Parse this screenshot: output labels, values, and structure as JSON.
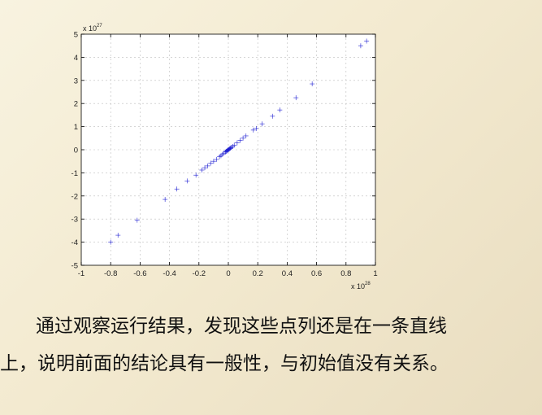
{
  "chart_data": {
    "type": "scatter",
    "title": "",
    "xlabel": "",
    "ylabel": "",
    "x_multiplier": "x 10",
    "x_exponent": "28",
    "y_multiplier": "x 10",
    "y_exponent": "27",
    "xlim": [
      -1,
      1
    ],
    "ylim": [
      -5,
      5
    ],
    "xticks": [
      "-1",
      "-0.8",
      "-0.6",
      "-0.4",
      "-0.2",
      "0",
      "0.2",
      "0.4",
      "0.6",
      "0.8",
      "1"
    ],
    "yticks": [
      "5",
      "4",
      "3",
      "2",
      "1",
      "0",
      "-1",
      "-2",
      "-3",
      "-4",
      "-5"
    ],
    "grid": true,
    "marker": "+",
    "color": "#0000cc",
    "points": [
      [
        -0.8,
        -4.0
      ],
      [
        -0.75,
        -3.7
      ],
      [
        -0.62,
        -3.05
      ],
      [
        -0.43,
        -2.15
      ],
      [
        -0.35,
        -1.7
      ],
      [
        -0.28,
        -1.35
      ],
      [
        -0.22,
        -1.1
      ],
      [
        -0.18,
        -0.88
      ],
      [
        -0.16,
        -0.78
      ],
      [
        -0.14,
        -0.7
      ],
      [
        -0.12,
        -0.58
      ],
      [
        -0.1,
        -0.5
      ],
      [
        -0.08,
        -0.42
      ],
      [
        -0.06,
        -0.3
      ],
      [
        -0.05,
        -0.26
      ],
      [
        -0.04,
        -0.2
      ],
      [
        -0.03,
        -0.15
      ],
      [
        -0.02,
        -0.1
      ],
      [
        -0.015,
        -0.07
      ],
      [
        -0.01,
        -0.05
      ],
      [
        -0.005,
        -0.02
      ],
      [
        0.0,
        0.0
      ],
      [
        0.005,
        0.02
      ],
      [
        0.01,
        0.05
      ],
      [
        0.015,
        0.07
      ],
      [
        0.02,
        0.1
      ],
      [
        0.03,
        0.14
      ],
      [
        0.04,
        0.2
      ],
      [
        0.06,
        0.3
      ],
      [
        0.08,
        0.4
      ],
      [
        0.1,
        0.5
      ],
      [
        0.12,
        0.6
      ],
      [
        0.17,
        0.85
      ],
      [
        0.19,
        0.92
      ],
      [
        0.23,
        1.12
      ],
      [
        0.3,
        1.45
      ],
      [
        0.35,
        1.72
      ],
      [
        0.46,
        2.25
      ],
      [
        0.57,
        2.85
      ],
      [
        0.9,
        4.5
      ],
      [
        0.94,
        4.7
      ]
    ]
  },
  "caption": {
    "line1": "通过观察运行结果，发现这些点列还是在一条直线",
    "line2": "上，说明前面的结论具有一般性，与初始值没有关系。"
  }
}
